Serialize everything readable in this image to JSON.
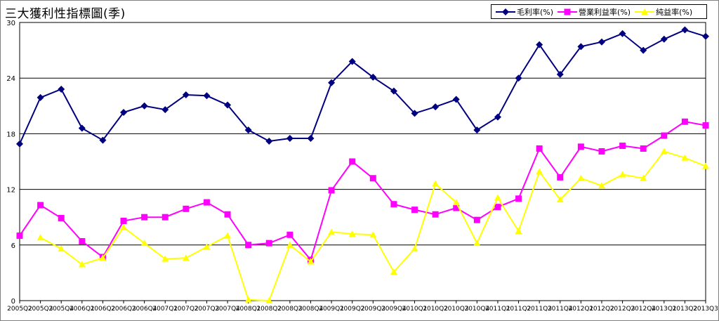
{
  "chart_data": {
    "type": "line",
    "title": "三大獲利性指標圖(季)",
    "ylim": [
      0,
      30
    ],
    "yticks": [
      0,
      6,
      12,
      18,
      24,
      30
    ],
    "grid": true,
    "legend_position": "top-right",
    "categories": [
      "2005Q2",
      "2005Q3",
      "2005Q4",
      "2006Q1",
      "2006Q2",
      "2006Q3",
      "2006Q4",
      "2007Q1",
      "2007Q2",
      "2007Q3",
      "2007Q4",
      "2008Q1",
      "2008Q2",
      "2008Q3",
      "2008Q4",
      "2009Q1",
      "2009Q2",
      "2009Q3",
      "2009Q4",
      "2010Q1",
      "2010Q2",
      "2010Q3",
      "2010Q4",
      "2011Q1",
      "2011Q2",
      "2011Q3",
      "2011Q4",
      "2012Q1",
      "2012Q2",
      "2012Q3",
      "2012Q4",
      "2013Q1",
      "2013Q2",
      "2013Q3"
    ],
    "series": [
      {
        "name": "毛利率(%)",
        "color": "#000080",
        "marker": "diamond",
        "values": [
          16.9,
          21.9,
          22.8,
          18.6,
          17.3,
          20.3,
          21.0,
          20.6,
          22.2,
          22.1,
          21.1,
          18.4,
          17.2,
          17.5,
          17.5,
          23.5,
          25.8,
          24.1,
          22.6,
          20.2,
          20.9,
          21.7,
          18.4,
          19.8,
          24.0,
          27.6,
          24.4,
          27.4,
          27.9,
          28.8,
          27.0,
          28.2,
          29.2,
          28.5
        ]
      },
      {
        "name": "營業利益率(%)",
        "color": "#ff00ff",
        "marker": "square",
        "values": [
          7.0,
          10.3,
          8.9,
          6.4,
          4.7,
          8.6,
          9.0,
          9.0,
          9.9,
          10.6,
          9.3,
          6.0,
          6.2,
          7.1,
          4.4,
          11.9,
          15.0,
          13.2,
          10.4,
          9.8,
          9.3,
          10.0,
          8.7,
          10.1,
          11.0,
          16.4,
          13.3,
          16.6,
          16.1,
          16.7,
          16.4,
          17.8,
          19.3,
          18.9
        ]
      },
      {
        "name": "純益率(%)",
        "color": "#ffff00",
        "marker": "triangle",
        "values": [
          null,
          6.8,
          5.6,
          3.9,
          4.6,
          7.9,
          6.2,
          4.5,
          4.6,
          5.8,
          7.0,
          0.1,
          0.0,
          6.0,
          4.2,
          7.4,
          7.2,
          7.1,
          3.1,
          5.6,
          12.6,
          10.6,
          6.2,
          11.1,
          7.5,
          13.9,
          10.9,
          13.2,
          12.4,
          13.6,
          13.2,
          16.1,
          15.4,
          14.5
        ]
      }
    ]
  }
}
